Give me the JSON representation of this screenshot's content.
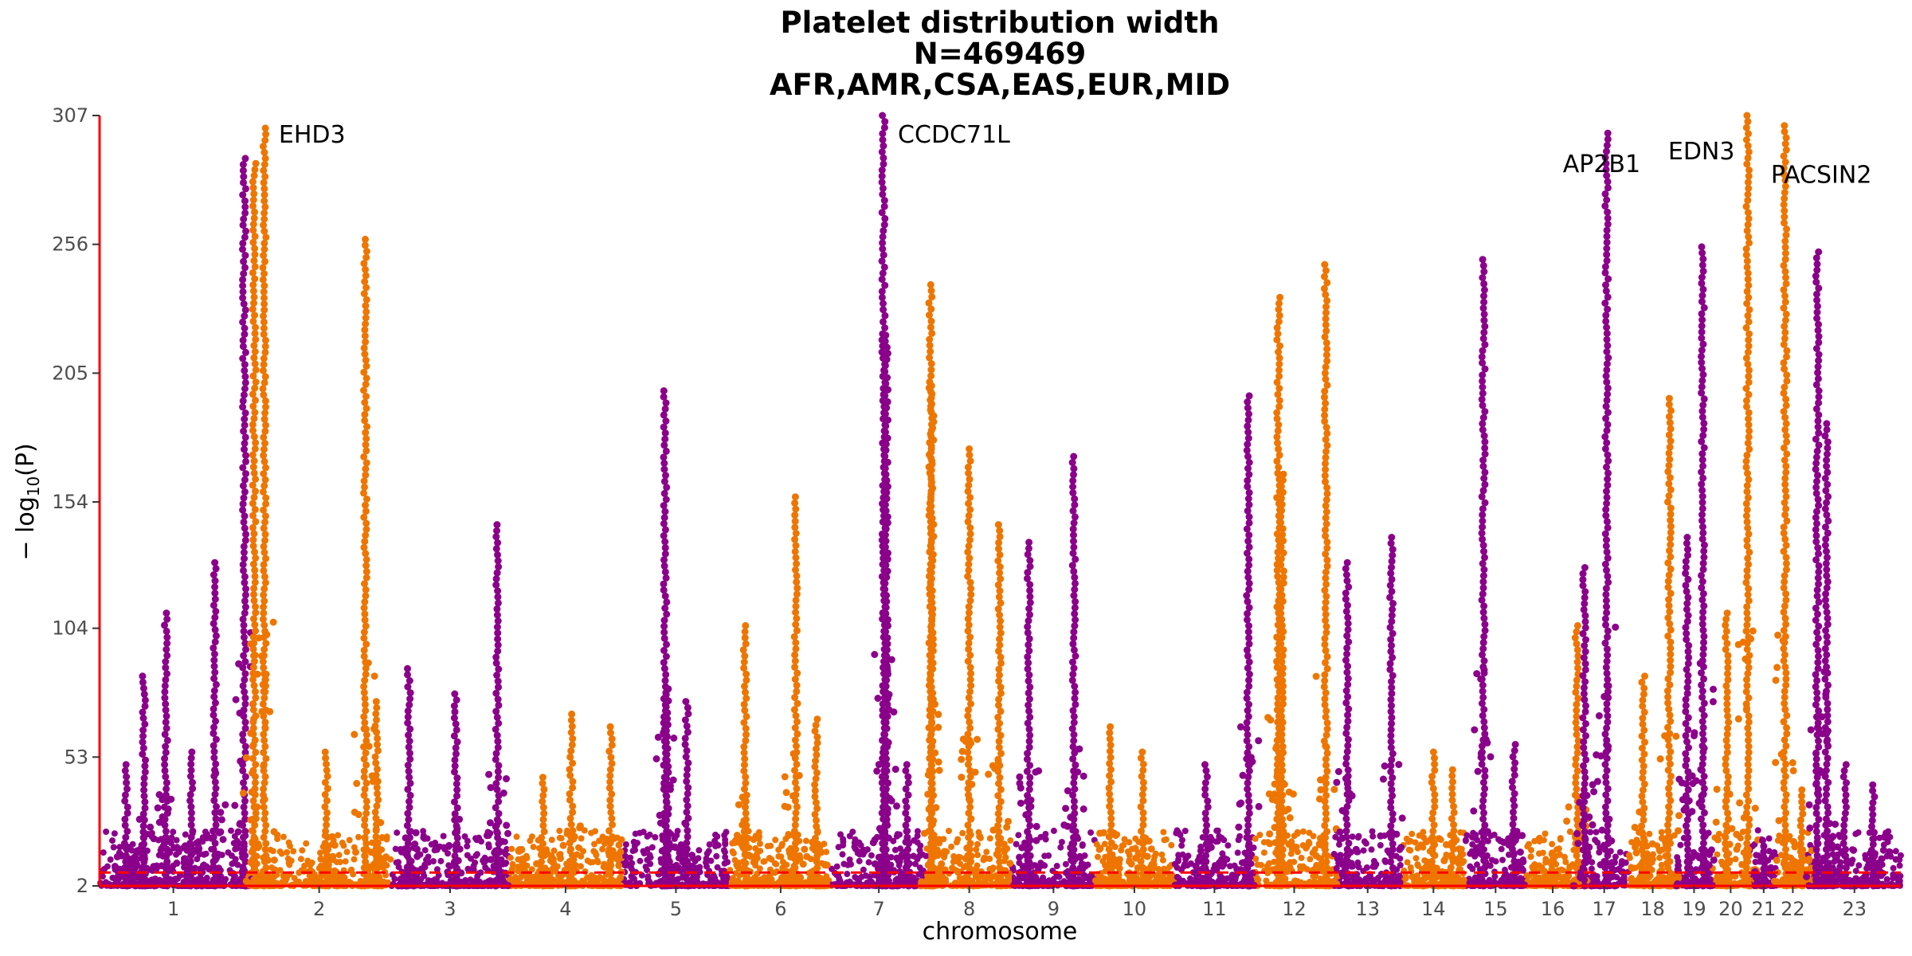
{
  "chart_data": {
    "type": "scatter",
    "subtype": "manhattan",
    "title_lines": [
      "Platelet distribution width",
      "N=469469",
      "AFR,AMR,CSA,EAS,EUR,MID"
    ],
    "xlabel": "chromosome",
    "ylabel_main": "− log",
    "ylabel_sub": "10",
    "ylabel_arg": "(P)",
    "yticks": [
      "2",
      "53",
      "104",
      "154",
      "205",
      "256",
      "307"
    ],
    "ytick_values": [
      2,
      53,
      104,
      154,
      205,
      256,
      307
    ],
    "ylim": [
      2,
      307
    ],
    "significance_line": 7.3,
    "colors": {
      "odd": "#8b008b",
      "even": "#ee7600",
      "threshold": "#ff0000",
      "axis": "#ff0000"
    },
    "chromosomes": [
      {
        "label": "1",
        "len": 248,
        "color": "odd"
      },
      {
        "label": "2",
        "len": 242,
        "color": "even"
      },
      {
        "label": "3",
        "len": 198,
        "color": "odd"
      },
      {
        "label": "4",
        "len": 190,
        "color": "even"
      },
      {
        "label": "5",
        "len": 181,
        "color": "odd"
      },
      {
        "label": "6",
        "len": 171,
        "color": "even"
      },
      {
        "label": "7",
        "len": 159,
        "color": "odd"
      },
      {
        "label": "8",
        "len": 145,
        "color": "even"
      },
      {
        "label": "9",
        "len": 138,
        "color": "odd"
      },
      {
        "label": "10",
        "len": 134,
        "color": "even"
      },
      {
        "label": "11",
        "len": 135,
        "color": "odd"
      },
      {
        "label": "12",
        "len": 133,
        "color": "even"
      },
      {
        "label": "13",
        "len": 114,
        "color": "odd"
      },
      {
        "label": "14",
        "len": 107,
        "color": "even"
      },
      {
        "label": "15",
        "len": 102,
        "color": "odd"
      },
      {
        "label": "16",
        "len": 90,
        "color": "even"
      },
      {
        "label": "17",
        "len": 83,
        "color": "odd"
      },
      {
        "label": "18",
        "len": 80,
        "color": "even"
      },
      {
        "label": "19",
        "len": 59,
        "color": "odd"
      },
      {
        "label": "20",
        "len": 64,
        "color": "even"
      },
      {
        "label": "21",
        "len": 47,
        "color": "odd"
      },
      {
        "label": "22",
        "len": 51,
        "color": "even"
      },
      {
        "label": "23",
        "len": 156,
        "color": "odd"
      }
    ],
    "peaks": [
      {
        "chr": "1",
        "pos": 0.18,
        "p": 50
      },
      {
        "chr": "1",
        "pos": 0.45,
        "p": 110
      },
      {
        "chr": "1",
        "pos": 0.62,
        "p": 55
      },
      {
        "chr": "1",
        "pos": 0.78,
        "p": 130
      },
      {
        "chr": "1",
        "pos": 0.98,
        "p": 290
      },
      {
        "chr": "1",
        "pos": 0.3,
        "p": 85
      },
      {
        "chr": "2",
        "pos": 0.05,
        "p": 288
      },
      {
        "chr": "2",
        "pos": 0.12,
        "p": 302
      },
      {
        "chr": "2",
        "pos": 0.55,
        "p": 55
      },
      {
        "chr": "2",
        "pos": 0.82,
        "p": 258
      },
      {
        "chr": "2",
        "pos": 0.9,
        "p": 75
      },
      {
        "chr": "3",
        "pos": 0.15,
        "p": 88
      },
      {
        "chr": "3",
        "pos": 0.55,
        "p": 78
      },
      {
        "chr": "3",
        "pos": 0.9,
        "p": 145
      },
      {
        "chr": "4",
        "pos": 0.3,
        "p": 45
      },
      {
        "chr": "4",
        "pos": 0.55,
        "p": 70
      },
      {
        "chr": "4",
        "pos": 0.9,
        "p": 65
      },
      {
        "chr": "5",
        "pos": 0.4,
        "p": 198
      },
      {
        "chr": "5",
        "pos": 0.42,
        "p": 80
      },
      {
        "chr": "5",
        "pos": 0.6,
        "p": 75
      },
      {
        "chr": "6",
        "pos": 0.15,
        "p": 105
      },
      {
        "chr": "6",
        "pos": 0.65,
        "p": 156
      },
      {
        "chr": "6",
        "pos": 0.85,
        "p": 68
      },
      {
        "chr": "7",
        "pos": 0.55,
        "p": 307
      },
      {
        "chr": "7",
        "pos": 0.58,
        "p": 220
      },
      {
        "chr": "7",
        "pos": 0.8,
        "p": 50
      },
      {
        "chr": "8",
        "pos": 0.05,
        "p": 240
      },
      {
        "chr": "8",
        "pos": 0.07,
        "p": 200
      },
      {
        "chr": "8",
        "pos": 0.5,
        "p": 175
      },
      {
        "chr": "8",
        "pos": 0.85,
        "p": 145
      },
      {
        "chr": "9",
        "pos": 0.2,
        "p": 138
      },
      {
        "chr": "9",
        "pos": 0.75,
        "p": 172
      },
      {
        "chr": "10",
        "pos": 0.2,
        "p": 65
      },
      {
        "chr": "10",
        "pos": 0.6,
        "p": 55
      },
      {
        "chr": "11",
        "pos": 0.4,
        "p": 50
      },
      {
        "chr": "11",
        "pos": 0.92,
        "p": 196
      },
      {
        "chr": "12",
        "pos": 0.3,
        "p": 235
      },
      {
        "chr": "12",
        "pos": 0.35,
        "p": 165
      },
      {
        "chr": "12",
        "pos": 0.9,
        "p": 248
      },
      {
        "chr": "13",
        "pos": 0.2,
        "p": 130
      },
      {
        "chr": "13",
        "pos": 0.85,
        "p": 140
      },
      {
        "chr": "14",
        "pos": 0.5,
        "p": 55
      },
      {
        "chr": "14",
        "pos": 0.8,
        "p": 48
      },
      {
        "chr": "15",
        "pos": 0.3,
        "p": 250
      },
      {
        "chr": "15",
        "pos": 0.8,
        "p": 58
      },
      {
        "chr": "16",
        "pos": 0.5,
        "p": 15
      },
      {
        "chr": "16",
        "pos": 0.95,
        "p": 105
      },
      {
        "chr": "17",
        "pos": 0.1,
        "p": 128
      },
      {
        "chr": "17",
        "pos": 0.55,
        "p": 300
      },
      {
        "chr": "18",
        "pos": 0.3,
        "p": 85
      },
      {
        "chr": "18",
        "pos": 0.85,
        "p": 195
      },
      {
        "chr": "19",
        "pos": 0.3,
        "p": 140
      },
      {
        "chr": "19",
        "pos": 0.75,
        "p": 255
      },
      {
        "chr": "20",
        "pos": 0.4,
        "p": 110
      },
      {
        "chr": "20",
        "pos": 0.95,
        "p": 307
      },
      {
        "chr": "21",
        "pos": 0.5,
        "p": 20
      },
      {
        "chr": "22",
        "pos": 0.25,
        "p": 303
      },
      {
        "chr": "22",
        "pos": 0.8,
        "p": 40
      },
      {
        "chr": "23",
        "pos": 0.1,
        "p": 253
      },
      {
        "chr": "23",
        "pos": 0.2,
        "p": 185
      },
      {
        "chr": "23",
        "pos": 0.4,
        "p": 50
      },
      {
        "chr": "23",
        "pos": 0.7,
        "p": 42
      }
    ],
    "annotations": [
      {
        "label": "EHD3",
        "chr": "2",
        "pos": 0.12,
        "p": 300
      },
      {
        "label": "CCDC71L",
        "chr": "7",
        "pos": 0.55,
        "p": 300
      },
      {
        "label": "AP2B1",
        "chr": "17",
        "pos": 0.55,
        "p": 294
      },
      {
        "label": "EDN3",
        "chr": "20",
        "pos": 0.95,
        "p": 296
      },
      {
        "label": "PACSIN2",
        "chr": "22",
        "pos": 0.25,
        "p": 291
      }
    ]
  }
}
